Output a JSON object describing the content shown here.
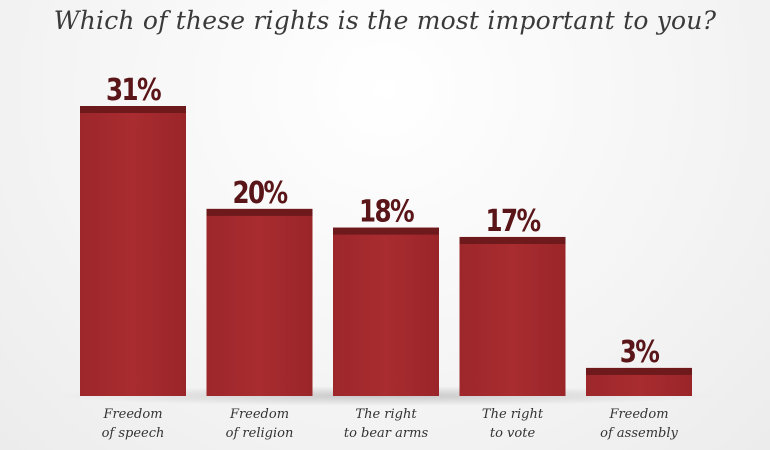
{
  "chart_data": {
    "type": "bar",
    "title": "Which of these rights is the most important to you?",
    "categories": [
      [
        "Freedom",
        "of speech"
      ],
      [
        "Freedom",
        "of religion"
      ],
      [
        "The right",
        "to bear arms"
      ],
      [
        "The right",
        "to vote"
      ],
      [
        "Freedom",
        "of assembly"
      ]
    ],
    "values": [
      31,
      20,
      18,
      17,
      3
    ],
    "value_labels": [
      "31%",
      "20%",
      "18%",
      "17%",
      "3%"
    ],
    "ylim": [
      0,
      31
    ],
    "grid": false,
    "colors": {
      "bar": "#a62a2e",
      "bar_cap": "#6e1a1d",
      "label": "#5a1518",
      "category": "#333333"
    }
  }
}
